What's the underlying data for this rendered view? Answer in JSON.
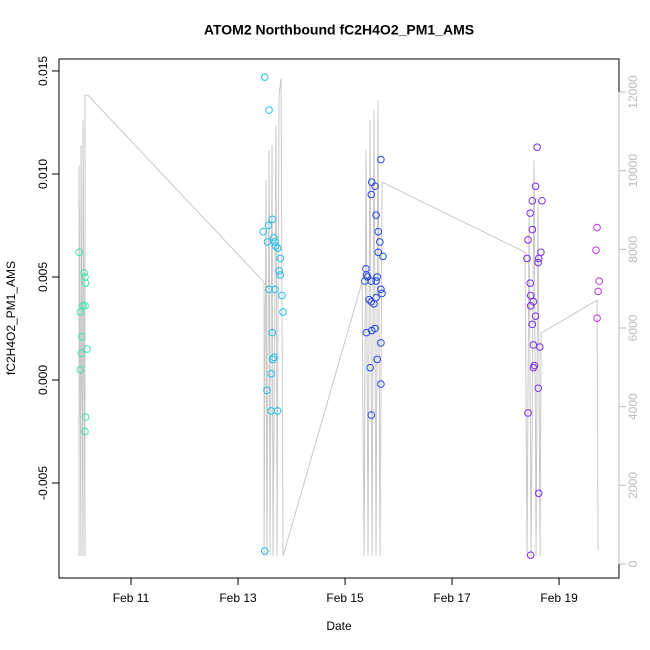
{
  "chart_data": {
    "type": "scatter",
    "title": "ATOM2 Northbound fC2H4O2_PM1_AMS",
    "xlabel": "Date",
    "ylabel": "fC2H4O2_PM1_AMS",
    "xlim": [
      9.654,
      20.12
    ],
    "ylim": [
      -0.00961,
      0.01558
    ],
    "y2lim": [
      -356,
      12839
    ],
    "xticks": [
      {
        "value": 11,
        "label": "Feb 11"
      },
      {
        "value": 13,
        "label": "Feb 13"
      },
      {
        "value": 15,
        "label": "Feb 15"
      },
      {
        "value": 17,
        "label": "Feb 17"
      },
      {
        "value": 19,
        "label": "Feb 19"
      }
    ],
    "yticks": [
      -0.005,
      {
        "value": 0,
        "label": "0.000"
      },
      0.005,
      {
        "value": 0.01,
        "label": "0.010"
      },
      0.015
    ],
    "y2ticks": [
      0,
      2000,
      4000,
      6000,
      8000,
      10000,
      12000
    ],
    "series": [
      {
        "color": "#3ee6a8",
        "x": [
          10.03,
          10.05,
          10.08,
          10.07,
          10.05,
          10.12,
          10.14,
          10.15,
          10.14,
          10.1,
          10.18,
          10.15,
          10.14
        ],
        "values": [
          0.0062,
          0.0033,
          0.0021,
          0.0013,
          0.0005,
          0.0052,
          0.005,
          0.0047,
          0.0036,
          0.0036,
          0.0015,
          -0.0018,
          -0.0025
        ]
      },
      {
        "color": "#22bfe8",
        "x": [
          13.5,
          13.58,
          13.47,
          13.57,
          13.55,
          13.64,
          13.67,
          13.69,
          13.7,
          13.74,
          13.79,
          13.77,
          13.79,
          13.58,
          13.69,
          13.82,
          13.84,
          13.64,
          13.67,
          13.65,
          13.62,
          13.54,
          13.62,
          13.74,
          13.5
        ],
        "values": [
          0.0147,
          0.0131,
          0.0072,
          0.0075,
          0.0067,
          0.0078,
          0.0069,
          0.0067,
          0.0065,
          0.0064,
          0.0059,
          0.0053,
          0.0051,
          0.0044,
          0.0044,
          0.0041,
          0.0033,
          0.0023,
          0.0011,
          0.001,
          0.0003,
          -0.0005,
          -0.0015,
          -0.0015,
          -0.0083
        ]
      },
      {
        "color": "#2646e6",
        "x": [
          15.67,
          15.5,
          15.56,
          15.49,
          15.58,
          15.62,
          15.65,
          15.62,
          15.71,
          15.39,
          15.4,
          15.42,
          15.6,
          15.37,
          15.49,
          15.58,
          15.67,
          15.69,
          15.58,
          15.45,
          15.49,
          15.54,
          15.4,
          15.5,
          15.56,
          15.67,
          15.6,
          15.47,
          15.67,
          15.49
        ],
        "values": [
          0.0107,
          0.0096,
          0.0094,
          0.009,
          0.008,
          0.0072,
          0.0067,
          0.0062,
          0.006,
          0.0054,
          0.0051,
          0.005,
          0.005,
          0.0048,
          0.0048,
          0.0048,
          0.0044,
          0.0042,
          0.004,
          0.0039,
          0.0038,
          0.0037,
          0.0023,
          0.0024,
          0.0025,
          0.0018,
          0.001,
          0.0006,
          -0.0002,
          -0.0017
        ]
      },
      {
        "color": "#7a2ee6",
        "x": [
          18.59,
          18.56,
          18.68,
          18.5,
          18.46,
          18.5,
          18.42,
          18.66,
          18.62,
          18.61,
          18.4,
          18.46,
          18.47,
          18.52,
          18.47,
          18.56,
          18.5,
          18.52,
          18.64,
          18.54,
          18.52,
          18.61,
          18.42,
          18.62,
          18.47
        ],
        "values": [
          0.0113,
          0.0094,
          0.0087,
          0.0087,
          0.0081,
          0.0073,
          0.0068,
          0.0062,
          0.0059,
          0.0057,
          0.0059,
          0.0047,
          0.0041,
          0.0038,
          0.0036,
          0.0031,
          0.0027,
          0.0017,
          0.0016,
          0.0007,
          0.0006,
          -0.0004,
          -0.0016,
          -0.0055,
          -0.0085
        ]
      },
      {
        "color": "#c631e0",
        "x": [
          19.71,
          19.69,
          19.75,
          19.73,
          19.71
        ],
        "values": [
          0.0074,
          0.0063,
          0.0048,
          0.0043,
          0.003
        ]
      },
      {
        "type": "line",
        "axis": "y2",
        "color": "#c8c8c8",
        "x": [
          10.028,
          10.028,
          10.065,
          10.065,
          10.103,
          10.103,
          10.14,
          10.14,
          10.196,
          13.486,
          13.486,
          13.523,
          13.542,
          13.579,
          13.598,
          13.636,
          13.654,
          13.71,
          13.729,
          13.766,
          13.804,
          13.841,
          15.318,
          15.355,
          15.393,
          15.43,
          15.467,
          15.505,
          15.542,
          15.579,
          15.617,
          15.654,
          15.692,
          18.364,
          18.402,
          18.439,
          18.477,
          18.533,
          18.57,
          18.607,
          18.645,
          18.664,
          19.71,
          19.729
        ],
        "values": [
          203,
          10139,
          203,
          10647,
          203,
          11282,
          203,
          11917,
          11917,
          7166,
          203,
          9757,
          203,
          10520,
          203,
          10647,
          203,
          11155,
          203,
          11917,
          12349,
          203,
          7166,
          203,
          10520,
          203,
          11282,
          203,
          11536,
          203,
          11790,
          203,
          9707,
          7928,
          203,
          8995,
          203,
          10266,
          203,
          9249,
          203,
          5870,
          6708,
          356
        ]
      }
    ]
  }
}
